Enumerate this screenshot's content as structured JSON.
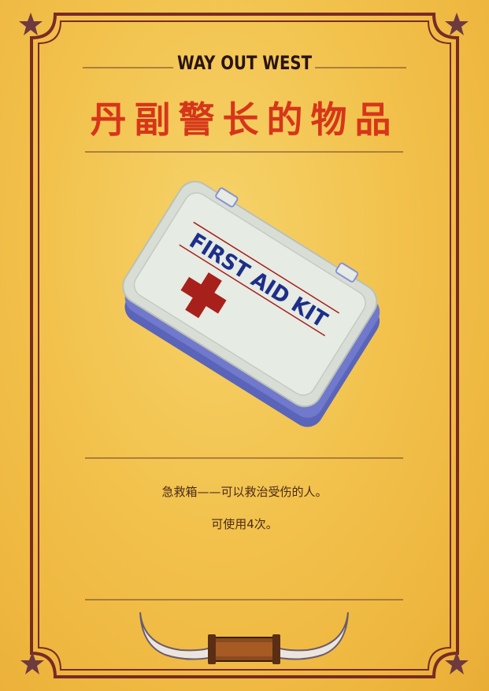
{
  "card": {
    "top_label": "WAY OUT WEST",
    "title": "丹副警长的物品",
    "item_image_text": "FIRST AID KIT",
    "description_line1": "急救箱——可以救治受伤的人。",
    "description_line2": "可使用4次。"
  },
  "colors": {
    "background": "#f2c24d",
    "frame": "#7a2a26",
    "title": "#d6361a",
    "label": "#2a1410",
    "kit_body": "#dfe6de",
    "kit_side": "#6670c8",
    "kit_cross": "#a8201c",
    "kit_text": "#1e2e8a"
  },
  "icons": {
    "corner": "star-icon",
    "item": "first-aid-kit-icon",
    "bottom_ornament": "longhorn-icon"
  }
}
